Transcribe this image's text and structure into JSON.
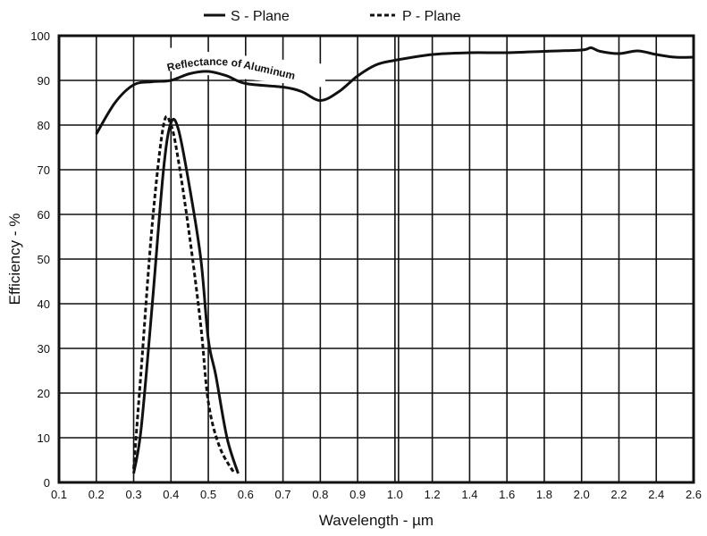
{
  "chart_data": {
    "type": "line",
    "title": "",
    "xlabel": "Wavelength - µm",
    "ylabel": "Efficiency - %",
    "ylim": [
      0,
      100
    ],
    "xlim": [
      0.1,
      2.6
    ],
    "grid": true,
    "legend_position": "top",
    "x_ticks": [
      "0.1",
      "0.2",
      "0.3",
      "0.4",
      "0.5",
      "0.6",
      "0.7",
      "0.8",
      "0.9",
      "1.0",
      "1.2",
      "1.4",
      "1.6",
      "1.8",
      "2.0",
      "2.2",
      "2.4",
      "2.6"
    ],
    "x_tick_values": [
      0.1,
      0.2,
      0.3,
      0.4,
      0.5,
      0.6,
      0.7,
      0.8,
      0.9,
      1.0,
      1.2,
      1.4,
      1.6,
      1.8,
      2.0,
      2.2,
      2.4,
      2.6
    ],
    "y_ticks": [
      "0",
      "10",
      "20",
      "30",
      "40",
      "50",
      "60",
      "70",
      "80",
      "90",
      "100"
    ],
    "y_tick_values": [
      0,
      10,
      20,
      30,
      40,
      50,
      60,
      70,
      80,
      90,
      100
    ],
    "annotation": "Reflectance of Aluminum",
    "series": [
      {
        "name": "S - Plane",
        "style": "solid",
        "x": [
          0.3,
          0.32,
          0.35,
          0.38,
          0.4,
          0.42,
          0.45,
          0.48,
          0.5,
          0.52,
          0.55,
          0.58
        ],
        "y": [
          2,
          12,
          40,
          70,
          80.5,
          79,
          66,
          50,
          32,
          24,
          10,
          2
        ]
      },
      {
        "name": "P - Plane",
        "style": "dashed",
        "x": [
          0.3,
          0.32,
          0.35,
          0.38,
          0.4,
          0.42,
          0.45,
          0.48,
          0.5,
          0.53,
          0.57
        ],
        "y": [
          3,
          25,
          58,
          80,
          80,
          72,
          55,
          35,
          18,
          8,
          2
        ]
      },
      {
        "name": "Reflectance of Aluminum",
        "style": "solid",
        "x": [
          0.2,
          0.25,
          0.3,
          0.35,
          0.4,
          0.45,
          0.5,
          0.55,
          0.6,
          0.7,
          0.75,
          0.8,
          0.85,
          0.9,
          0.95,
          1.0,
          1.2,
          1.4,
          1.6,
          1.8,
          2.0,
          2.05,
          2.1,
          2.2,
          2.3,
          2.4,
          2.5,
          2.6
        ],
        "y": [
          78,
          85,
          89,
          89.7,
          90,
          91.5,
          92,
          91,
          89.3,
          88.5,
          87.5,
          85.5,
          87.5,
          91,
          93.5,
          94.5,
          95.8,
          96.2,
          96.2,
          96.5,
          96.8,
          97.3,
          96.5,
          96,
          96.6,
          95.8,
          95.2,
          95.2
        ]
      }
    ]
  }
}
